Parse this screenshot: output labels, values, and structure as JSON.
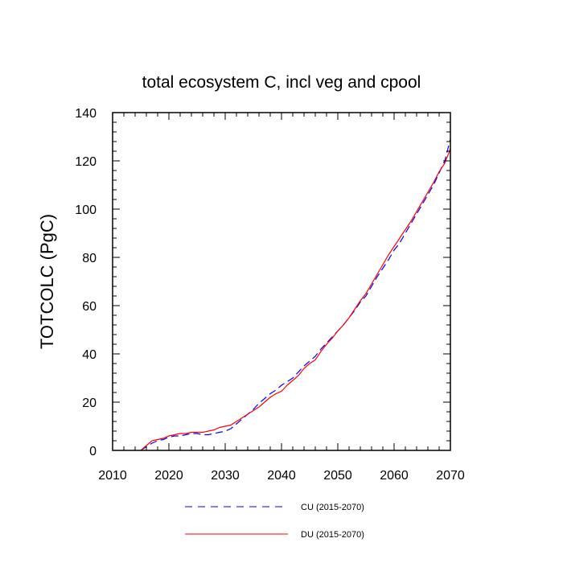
{
  "chart_data": {
    "type": "line",
    "title": "total ecosystem C, incl veg and cpool",
    "xlabel": "",
    "ylabel": "TOTCOLC  (PgC)",
    "xlim": [
      2010,
      2070
    ],
    "ylim": [
      0,
      140
    ],
    "xticks": [
      2010,
      2020,
      2030,
      2040,
      2050,
      2060,
      2070
    ],
    "yticks": [
      0,
      20,
      40,
      60,
      80,
      100,
      120,
      140
    ],
    "grid": false,
    "legend_position": "bottom",
    "series": [
      {
        "name": "CU (2015-2070)",
        "color": "#0000ff",
        "style": "dashed",
        "x": [
          2015,
          2016,
          2017,
          2018,
          2019,
          2020,
          2021,
          2022,
          2023,
          2024,
          2025,
          2026,
          2027,
          2028,
          2029,
          2030,
          2031,
          2032,
          2033,
          2034,
          2035,
          2036,
          2037,
          2038,
          2039,
          2040,
          2041,
          2042,
          2043,
          2044,
          2045,
          2046,
          2047,
          2048,
          2049,
          2050,
          2051,
          2052,
          2053,
          2054,
          2055,
          2056,
          2057,
          2058,
          2059,
          2060,
          2061,
          2062,
          2063,
          2064,
          2065,
          2066,
          2067,
          2068,
          2069,
          2070
        ],
        "values": [
          0,
          1.5,
          3,
          4,
          4.5,
          5.5,
          6,
          6,
          6.5,
          7,
          7,
          6.5,
          6.5,
          7,
          7.5,
          8,
          9,
          11,
          13,
          15,
          17,
          19.5,
          21.5,
          23.5,
          25,
          27,
          28.5,
          30,
          32.5,
          35,
          37,
          39,
          42,
          44.5,
          47,
          49.5,
          52,
          55,
          58,
          61.5,
          64,
          68,
          72,
          75.5,
          79,
          83,
          86,
          90,
          94,
          98,
          102,
          106,
          110,
          115,
          120,
          129
        ]
      },
      {
        "name": "DU (2015-2070)",
        "color": "#ff0000",
        "style": "solid",
        "x": [
          2015,
          2016,
          2017,
          2018,
          2019,
          2020,
          2021,
          2022,
          2023,
          2024,
          2025,
          2026,
          2027,
          2028,
          2029,
          2030,
          2031,
          2032,
          2033,
          2034,
          2035,
          2036,
          2037,
          2038,
          2039,
          2040,
          2041,
          2042,
          2043,
          2044,
          2045,
          2046,
          2047,
          2048,
          2049,
          2050,
          2051,
          2052,
          2053,
          2054,
          2055,
          2056,
          2057,
          2058,
          2059,
          2060,
          2061,
          2062,
          2063,
          2064,
          2065,
          2066,
          2067,
          2068,
          2069,
          2070
        ],
        "values": [
          0,
          2,
          4,
          4.5,
          5,
          6,
          6.5,
          7,
          7,
          7.5,
          7.5,
          7.5,
          8,
          8.5,
          9.5,
          10,
          10.5,
          12,
          13.5,
          15,
          16.5,
          18,
          20,
          22,
          23.5,
          24.5,
          27,
          29,
          31,
          34,
          36,
          37.5,
          41,
          44,
          46.5,
          49.5,
          52,
          55,
          58.5,
          62,
          65,
          69,
          73,
          77,
          81,
          84.5,
          88,
          91.5,
          95,
          99,
          103,
          107,
          111,
          115.5,
          119,
          125
        ]
      }
    ]
  }
}
